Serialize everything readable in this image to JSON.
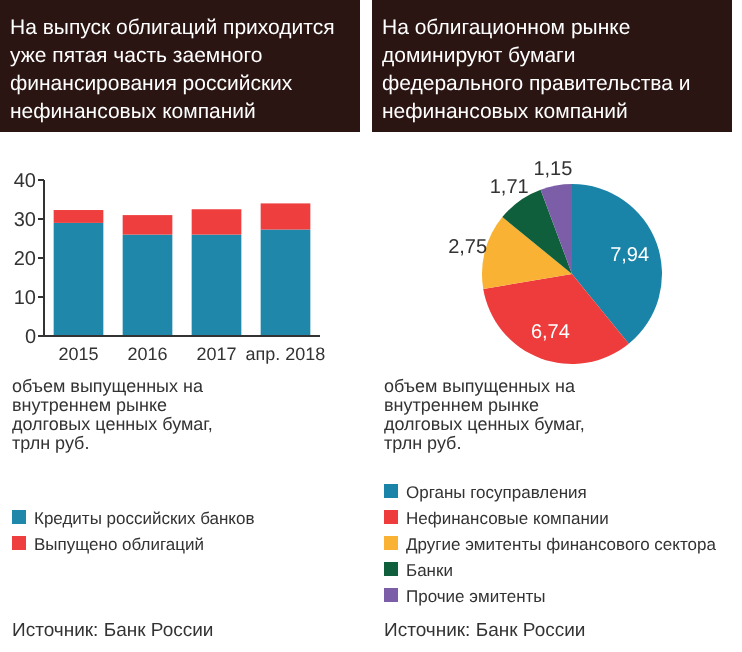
{
  "chart_data": [
    {
      "type": "bar",
      "title": "На выпуск облигаций приходится уже пятая часть заемного финансирования российских нефинансовых компаний",
      "categories": [
        "2015",
        "2016",
        "2017",
        "апр. 2018"
      ],
      "stacked": true,
      "series": [
        {
          "name": "Кредиты российских банков",
          "color": "#1f87aa",
          "values": [
            29,
            26,
            26,
            27.3
          ]
        },
        {
          "name": "Выпущено облигаций",
          "color": "#ef3e3e",
          "values": [
            3.3,
            5,
            6.5,
            6.7
          ]
        }
      ],
      "ylim": [
        0,
        40
      ],
      "yticks": [
        0,
        10,
        20,
        30,
        40
      ],
      "legend": "bottom",
      "annotations": [
        "объем выпущенных на внутреннем рынке долговых ценных бумаг, трлн руб.",
        "Источник: Банк России"
      ]
    },
    {
      "type": "pie",
      "title": "На облигационном рынке доминируют бумаги федерального правительства и нефинансовых компаний",
      "categories": [
        "Органы госуправления",
        "Нефинансовые компании",
        "Другие эмитенты финансового сектора",
        "Банки",
        "Прочие эмитенты"
      ],
      "values": [
        7.94,
        6.74,
        2.75,
        1.71,
        1.15
      ],
      "value_labels": [
        "7,94",
        "6,74",
        "2,75",
        "1,71",
        "1,15"
      ],
      "colors": [
        "#1a84a8",
        "#ee3b3b",
        "#f9b233",
        "#0f5e3c",
        "#7b5ea7"
      ],
      "legend": "bottom",
      "annotations": [
        "объем выпущенных на внутреннем рынке долговых ценных бумаг, трлн руб.",
        "Источник: Банк России"
      ]
    }
  ]
}
